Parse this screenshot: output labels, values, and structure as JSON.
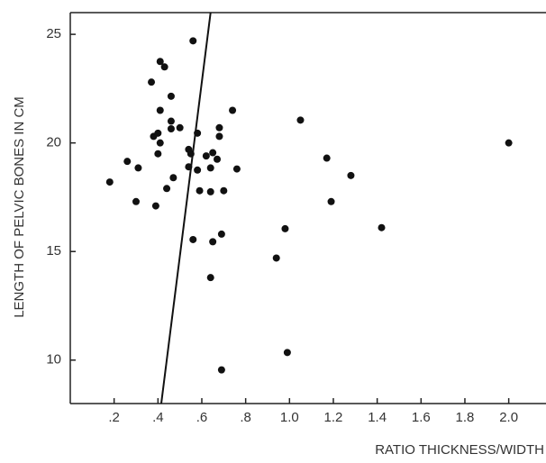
{
  "chart_data": {
    "type": "scatter",
    "x_label": "RATIO THICKNESS/WIDTH",
    "y_label": "LENGTH OF PELVIC BONES IN CM",
    "x": [
      0.18,
      0.26,
      0.31,
      0.3,
      0.37,
      0.41,
      0.43,
      0.38,
      0.4,
      0.41,
      0.4,
      0.41,
      0.39,
      0.44,
      0.46,
      0.46,
      0.46,
      0.5,
      0.47,
      0.56,
      0.54,
      0.55,
      0.54,
      0.58,
      0.58,
      0.59,
      0.56,
      0.62,
      0.64,
      0.65,
      0.67,
      0.64,
      0.68,
      0.68,
      0.7,
      0.76,
      0.74,
      0.65,
      0.69,
      0.64,
      0.69,
      0.98,
      0.94,
      0.99,
      1.05,
      1.17,
      1.19,
      1.28,
      1.42,
      2.0
    ],
    "values": [
      18.2,
      19.15,
      18.85,
      17.3,
      22.8,
      23.75,
      23.5,
      20.3,
      20.45,
      20.0,
      19.5,
      21.5,
      17.1,
      17.9,
      22.15,
      21.0,
      20.65,
      20.7,
      18.4,
      24.7,
      19.7,
      19.5,
      18.9,
      20.45,
      18.75,
      17.8,
      15.55,
      19.4,
      18.85,
      19.55,
      19.25,
      17.75,
      20.7,
      20.3,
      17.8,
      18.8,
      21.5,
      15.45,
      15.8,
      13.8,
      9.55,
      16.05,
      14.7,
      10.35,
      21.05,
      19.3,
      17.3,
      18.5,
      16.1,
      20.0
    ],
    "color": "#111111",
    "line": {
      "x": [
        0.415,
        0.64
      ],
      "y": [
        8,
        26
      ]
    },
    "xlim": [
      0,
      2.17
    ],
    "ylim": [
      8,
      26
    ],
    "xticks": [
      {
        "value": 0.2,
        "label": ".2"
      },
      {
        "value": 0.4,
        "label": ".4"
      },
      {
        "value": 0.6,
        "label": ".6"
      },
      {
        "value": 0.8,
        "label": ".8"
      },
      {
        "value": 1,
        "label": "1.0"
      },
      {
        "value": 1.2,
        "label": "1.2"
      },
      {
        "value": 1.4,
        "label": "1.4"
      },
      {
        "value": 1.6,
        "label": "1.6"
      },
      {
        "value": 1.8,
        "label": "1.8"
      },
      {
        "value": 2,
        "label": "2.0"
      }
    ],
    "yticks": [
      10,
      15,
      20,
      25
    ]
  }
}
